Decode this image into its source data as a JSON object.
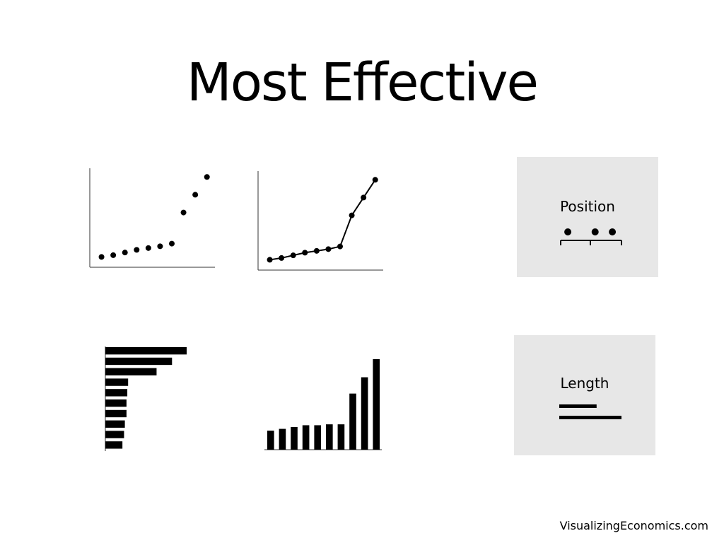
{
  "slide": {
    "title": "Most Effective",
    "credit": "VisualizingEconomics.com"
  },
  "legend": {
    "position_label": "Position",
    "length_label": "Length",
    "position_dots": [
      0.12,
      0.58,
      0.87
    ],
    "length_bars": [
      0.6,
      1.0
    ]
  },
  "chart_data": [
    {
      "type": "scatter",
      "x": [
        1,
        2,
        3,
        4,
        5,
        6,
        7,
        8,
        9,
        10
      ],
      "y": [
        1.0,
        1.2,
        1.5,
        1.8,
        2.0,
        2.2,
        2.5,
        6.0,
        8.0,
        10.0
      ],
      "ylim": [
        0,
        10.5
      ],
      "xlim": [
        0,
        10.5
      ]
    },
    {
      "type": "line",
      "x": [
        1,
        2,
        3,
        4,
        5,
        6,
        7,
        8,
        9,
        10
      ],
      "y": [
        1.0,
        1.2,
        1.5,
        1.8,
        2.0,
        2.2,
        2.5,
        6.0,
        8.0,
        10.0
      ],
      "ylim": [
        0,
        10.5
      ],
      "xlim": [
        0,
        10.5
      ]
    },
    {
      "type": "bar",
      "orientation": "horizontal",
      "values": [
        10.0,
        8.2,
        6.3,
        2.8,
        2.7,
        2.6,
        2.6,
        2.4,
        2.3,
        2.1
      ],
      "xlim": [
        0,
        10
      ]
    },
    {
      "type": "bar",
      "orientation": "vertical",
      "values": [
        2.1,
        2.3,
        2.5,
        2.7,
        2.7,
        2.8,
        2.8,
        6.2,
        8.0,
        10.0
      ],
      "ylim": [
        0,
        10
      ]
    }
  ]
}
